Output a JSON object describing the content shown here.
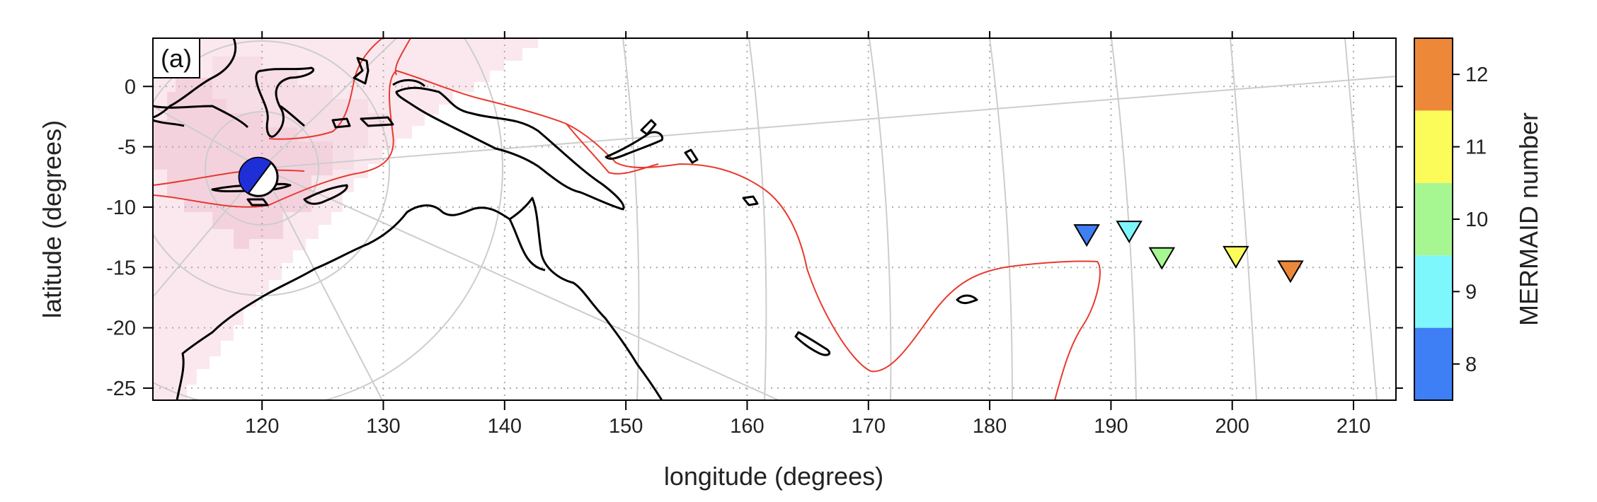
{
  "panel_label": "(a)",
  "xlabel": "longitude (degrees)",
  "ylabel": "latitude (degrees)",
  "xlim": [
    111,
    213.5
  ],
  "ylim": [
    -26,
    4
  ],
  "xticks": [
    120,
    130,
    140,
    150,
    160,
    170,
    180,
    190,
    200,
    210
  ],
  "yticks": [
    0,
    -5,
    -10,
    -15,
    -20,
    -25
  ],
  "colorbar": {
    "label": "MERMAID number",
    "levels": [
      8,
      9,
      10,
      11,
      12
    ],
    "colors": [
      "#3f7ff5",
      "#7df7fb",
      "#a6f791",
      "#fbfb59",
      "#ee8839"
    ]
  },
  "colors": {
    "coast": "#000000",
    "plate_boundary": "#e83a2f",
    "grid": "#b0b0b0",
    "great_circle": "#c8c8c8",
    "shade_light": "#fbe8ee",
    "shade_dark": "#f4d4df",
    "beachball_compression": "#1f2fd8"
  },
  "event": {
    "lon": 119.7,
    "lat": -7.5,
    "icon": "beachball-focal-mechanism-icon"
  },
  "stations": [
    {
      "number": 8,
      "lon": 188.0,
      "lat": -12.3
    },
    {
      "number": 9,
      "lon": 191.5,
      "lat": -12.0
    },
    {
      "number": 10,
      "lon": 194.2,
      "lat": -14.2
    },
    {
      "number": 11,
      "lon": 200.3,
      "lat": -14.1
    },
    {
      "number": 12,
      "lon": 204.8,
      "lat": -15.3
    }
  ]
}
